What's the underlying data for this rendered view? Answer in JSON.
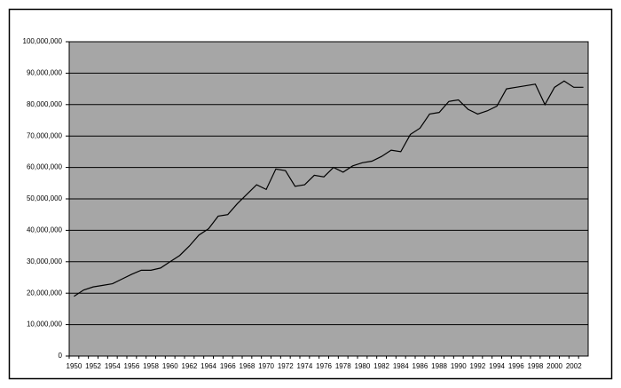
{
  "chart_data": {
    "type": "line",
    "categories": [
      "1950",
      null,
      "1952",
      null,
      "1954",
      null,
      "1956",
      null,
      "1958",
      null,
      "1960",
      null,
      "1962",
      null,
      "1964",
      null,
      "1966",
      null,
      "1968",
      null,
      "1970",
      null,
      "1972",
      null,
      "1974",
      null,
      "1976",
      null,
      "1978",
      null,
      "1980",
      null,
      "1982",
      null,
      "1984",
      null,
      "1986",
      null,
      "1988",
      null,
      "1990",
      null,
      "1992",
      null,
      "1994",
      null,
      "1996",
      null,
      "1998",
      null,
      "2000",
      null,
      "2002",
      null
    ],
    "values": [
      19000000,
      21000000,
      22000000,
      22500000,
      23000000,
      24500000,
      26000000,
      27300000,
      27300000,
      28000000,
      30000000,
      32000000,
      35000000,
      38500000,
      40500000,
      44500000,
      45000000,
      48500000,
      51500000,
      54500000,
      53000000,
      59500000,
      59000000,
      54000000,
      54500000,
      57500000,
      57000000,
      60000000,
      58500000,
      60500000,
      61500000,
      62000000,
      63500000,
      65500000,
      65000000,
      70500000,
      72500000,
      77000000,
      77500000,
      81000000,
      81500000,
      78500000,
      77000000,
      78000000,
      79500000,
      85000000,
      85500000,
      86000000,
      86500000,
      80000000,
      85500000,
      87500000,
      85500000,
      85500000
    ],
    "color": "#000000",
    "plot_background": "#a6a6a6",
    "ylim": [
      0,
      100000000
    ],
    "yticks": [
      0,
      {
        "value": 10000000,
        "label": "10,000,000"
      },
      {
        "value": 20000000,
        "label": "20,000,000"
      },
      {
        "value": 30000000,
        "label": "30,000,000"
      },
      {
        "value": 40000000,
        "label": "40,000,000"
      },
      {
        "value": 50000000,
        "label": "50,000,000"
      },
      {
        "value": 60000000,
        "label": "60,000,000"
      },
      {
        "value": 70000000,
        "label": "70,000,000"
      },
      {
        "value": 80000000,
        "label": "80,000,000"
      },
      {
        "value": 90000000,
        "label": "90,000,000"
      },
      {
        "value": 100000000,
        "label": "100,000,000"
      }
    ],
    "grid": true
  }
}
